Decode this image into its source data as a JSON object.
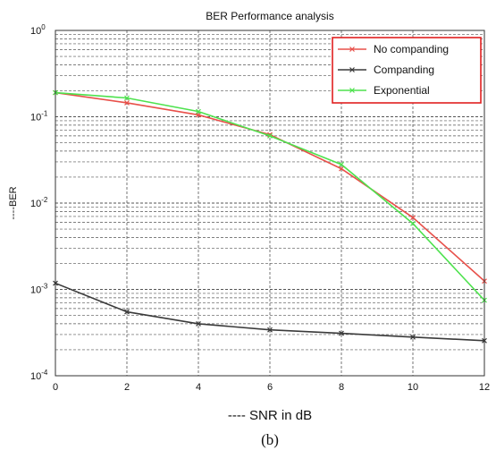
{
  "chart_data": {
    "type": "line",
    "title": "BER Performance analysis",
    "xlabel": "---- SNR in dB",
    "ylabel": "----BER",
    "caption": "(b)",
    "xlim": [
      0,
      12
    ],
    "ylim": [
      0.0001,
      1
    ],
    "yscale": "log",
    "grid": true,
    "legend_position": "top-right",
    "x_ticks": [
      "0",
      "2",
      "4",
      "6",
      "8",
      "10",
      "12"
    ],
    "y_ticks": [
      {
        "base": "10",
        "exp": "0"
      },
      {
        "base": "10",
        "exp": "-1"
      },
      {
        "base": "10",
        "exp": "-2"
      },
      {
        "base": "10",
        "exp": "-3"
      },
      {
        "base": "10",
        "exp": "-4"
      }
    ],
    "x": [
      0,
      2,
      4,
      6,
      8,
      10,
      12
    ],
    "series": [
      {
        "name": "No companding",
        "color": "#e8504a",
        "marker": "x",
        "values": [
          0.19,
          0.145,
          0.105,
          0.062,
          0.025,
          0.0068,
          0.00125
        ]
      },
      {
        "name": "Companding",
        "color": "#3a3a3a",
        "marker": "x",
        "values": [
          0.00118,
          0.00055,
          0.0004,
          0.00034,
          0.00031,
          0.00028,
          0.000255
        ]
      },
      {
        "name": "Exponential",
        "color": "#4ee24e",
        "marker": "x",
        "values": [
          0.19,
          0.165,
          0.115,
          0.06,
          0.028,
          0.0058,
          0.00075
        ]
      }
    ]
  }
}
